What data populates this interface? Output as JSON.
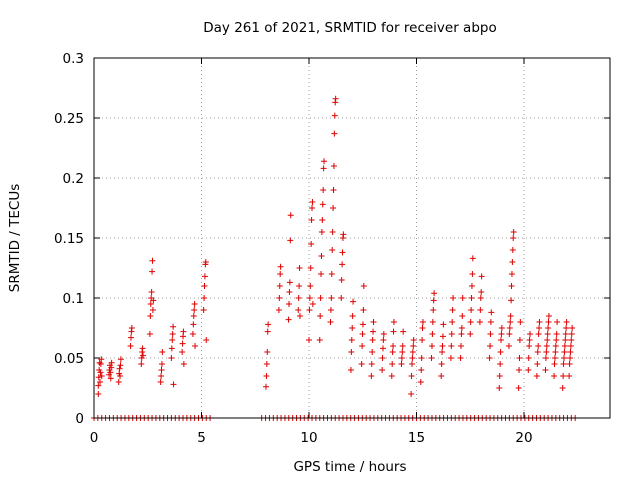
{
  "chart_data": {
    "type": "scatter",
    "title": "Day 261 of 2021, SRMTID for receiver abpo",
    "xlabel": "GPS time / hours",
    "ylabel": "SRMTID / TECUs",
    "xlim": [
      0,
      24
    ],
    "ylim": [
      0,
      0.3
    ],
    "xticks": [
      0,
      5,
      10,
      15,
      20
    ],
    "xtick_labels": [
      "0",
      "5",
      "10",
      "15",
      "20"
    ],
    "yticks": [
      0,
      0.05,
      0.1,
      0.15,
      0.2,
      0.25,
      0.3
    ],
    "ytick_labels": [
      "0",
      "0.05",
      "0.1",
      "0.15",
      "0.2",
      "0.25",
      "0.3"
    ],
    "grid": true,
    "marker": "+",
    "color": "#dd0000",
    "series": [
      {
        "name": "SRMTID",
        "points": [
          [
            0.2,
            0.02
          ],
          [
            0.2,
            0.027
          ],
          [
            0.22,
            0.034
          ],
          [
            0.24,
            0.04
          ],
          [
            0.26,
            0.046
          ],
          [
            0.28,
            0.03
          ],
          [
            0.3,
            0.038
          ],
          [
            0.32,
            0.045
          ],
          [
            0.34,
            0.049
          ],
          [
            0.36,
            0.035
          ],
          [
            0.7,
            0.036
          ],
          [
            0.72,
            0.04
          ],
          [
            0.74,
            0.044
          ],
          [
            0.76,
            0.038
          ],
          [
            0.78,
            0.033
          ],
          [
            0.8,
            0.042
          ],
          [
            0.82,
            0.046
          ],
          [
            1.15,
            0.03
          ],
          [
            1.17,
            0.037
          ],
          [
            1.19,
            0.041
          ],
          [
            1.21,
            0.035
          ],
          [
            1.23,
            0.044
          ],
          [
            1.25,
            0.049
          ],
          [
            1.7,
            0.06
          ],
          [
            1.72,
            0.067
          ],
          [
            1.74,
            0.072
          ],
          [
            1.76,
            0.075
          ],
          [
            2.2,
            0.045
          ],
          [
            2.22,
            0.05
          ],
          [
            2.24,
            0.055
          ],
          [
            2.26,
            0.058
          ],
          [
            2.28,
            0.052
          ],
          [
            2.6,
            0.07
          ],
          [
            2.62,
            0.085
          ],
          [
            2.64,
            0.095
          ],
          [
            2.66,
            0.1
          ],
          [
            2.68,
            0.105
          ],
          [
            2.7,
            0.122
          ],
          [
            2.72,
            0.131
          ],
          [
            2.74,
            0.09
          ],
          [
            2.76,
            0.098
          ],
          [
            3.1,
            0.03
          ],
          [
            3.12,
            0.035
          ],
          [
            3.14,
            0.04
          ],
          [
            3.16,
            0.045
          ],
          [
            3.18,
            0.055
          ],
          [
            3.6,
            0.05
          ],
          [
            3.62,
            0.058
          ],
          [
            3.64,
            0.065
          ],
          [
            3.66,
            0.07
          ],
          [
            3.68,
            0.076
          ],
          [
            3.7,
            0.028
          ],
          [
            4.1,
            0.055
          ],
          [
            4.12,
            0.062
          ],
          [
            4.14,
            0.068
          ],
          [
            4.16,
            0.072
          ],
          [
            4.18,
            0.045
          ],
          [
            4.6,
            0.07
          ],
          [
            4.62,
            0.078
          ],
          [
            4.64,
            0.085
          ],
          [
            4.66,
            0.09
          ],
          [
            4.68,
            0.095
          ],
          [
            4.7,
            0.06
          ],
          [
            5.1,
            0.09
          ],
          [
            5.12,
            0.1
          ],
          [
            5.14,
            0.11
          ],
          [
            5.16,
            0.118
          ],
          [
            5.18,
            0.128
          ],
          [
            5.2,
            0.13
          ],
          [
            5.22,
            0.065
          ],
          [
            8.0,
            0.026
          ],
          [
            8.02,
            0.035
          ],
          [
            8.04,
            0.045
          ],
          [
            8.06,
            0.055
          ],
          [
            8.08,
            0.072
          ],
          [
            8.1,
            0.078
          ],
          [
            8.6,
            0.09
          ],
          [
            8.62,
            0.1
          ],
          [
            8.64,
            0.11
          ],
          [
            8.66,
            0.12
          ],
          [
            8.68,
            0.126
          ],
          [
            9.05,
            0.082
          ],
          [
            9.07,
            0.095
          ],
          [
            9.09,
            0.105
          ],
          [
            9.11,
            0.113
          ],
          [
            9.13,
            0.148
          ],
          [
            9.15,
            0.169
          ],
          [
            9.5,
            0.09
          ],
          [
            9.52,
            0.1
          ],
          [
            9.54,
            0.11
          ],
          [
            9.56,
            0.125
          ],
          [
            9.58,
            0.085
          ],
          [
            10.0,
            0.065
          ],
          [
            10.02,
            0.09
          ],
          [
            10.04,
            0.1
          ],
          [
            10.06,
            0.11
          ],
          [
            10.08,
            0.125
          ],
          [
            10.1,
            0.145
          ],
          [
            10.12,
            0.165
          ],
          [
            10.14,
            0.175
          ],
          [
            10.16,
            0.18
          ],
          [
            10.18,
            0.095
          ],
          [
            10.5,
            0.065
          ],
          [
            10.52,
            0.085
          ],
          [
            10.54,
            0.1
          ],
          [
            10.56,
            0.12
          ],
          [
            10.58,
            0.135
          ],
          [
            10.6,
            0.155
          ],
          [
            10.62,
            0.165
          ],
          [
            10.64,
            0.178
          ],
          [
            10.66,
            0.19
          ],
          [
            10.68,
            0.208
          ],
          [
            10.7,
            0.214
          ],
          [
            11.0,
            0.08
          ],
          [
            11.02,
            0.09
          ],
          [
            11.04,
            0.1
          ],
          [
            11.06,
            0.12
          ],
          [
            11.08,
            0.14
          ],
          [
            11.1,
            0.155
          ],
          [
            11.12,
            0.175
          ],
          [
            11.14,
            0.19
          ],
          [
            11.16,
            0.21
          ],
          [
            11.18,
            0.237
          ],
          [
            11.2,
            0.252
          ],
          [
            11.22,
            0.263
          ],
          [
            11.24,
            0.266
          ],
          [
            11.5,
            0.1
          ],
          [
            11.52,
            0.115
          ],
          [
            11.54,
            0.128
          ],
          [
            11.56,
            0.138
          ],
          [
            11.58,
            0.15
          ],
          [
            11.6,
            0.153
          ],
          [
            11.95,
            0.04
          ],
          [
            11.97,
            0.055
          ],
          [
            11.99,
            0.065
          ],
          [
            12.01,
            0.075
          ],
          [
            12.03,
            0.085
          ],
          [
            12.05,
            0.097
          ],
          [
            12.45,
            0.045
          ],
          [
            12.47,
            0.06
          ],
          [
            12.49,
            0.07
          ],
          [
            12.51,
            0.078
          ],
          [
            12.53,
            0.09
          ],
          [
            12.55,
            0.11
          ],
          [
            12.9,
            0.035
          ],
          [
            12.92,
            0.045
          ],
          [
            12.94,
            0.055
          ],
          [
            12.96,
            0.065
          ],
          [
            12.98,
            0.072
          ],
          [
            13.0,
            0.08
          ],
          [
            13.4,
            0.04
          ],
          [
            13.42,
            0.05
          ],
          [
            13.44,
            0.058
          ],
          [
            13.46,
            0.065
          ],
          [
            13.48,
            0.07
          ],
          [
            13.85,
            0.035
          ],
          [
            13.87,
            0.045
          ],
          [
            13.89,
            0.055
          ],
          [
            13.91,
            0.06
          ],
          [
            13.93,
            0.072
          ],
          [
            13.95,
            0.08
          ],
          [
            14.3,
            0.045
          ],
          [
            14.32,
            0.05
          ],
          [
            14.34,
            0.055
          ],
          [
            14.36,
            0.06
          ],
          [
            14.38,
            0.072
          ],
          [
            14.75,
            0.02
          ],
          [
            14.77,
            0.035
          ],
          [
            14.79,
            0.045
          ],
          [
            14.81,
            0.05
          ],
          [
            14.83,
            0.055
          ],
          [
            14.85,
            0.06
          ],
          [
            14.87,
            0.065
          ],
          [
            15.2,
            0.03
          ],
          [
            15.22,
            0.04
          ],
          [
            15.24,
            0.05
          ],
          [
            15.26,
            0.065
          ],
          [
            15.28,
            0.075
          ],
          [
            15.3,
            0.08
          ],
          [
            15.7,
            0.05
          ],
          [
            15.72,
            0.06
          ],
          [
            15.74,
            0.07
          ],
          [
            15.76,
            0.08
          ],
          [
            15.78,
            0.09
          ],
          [
            15.8,
            0.098
          ],
          [
            15.82,
            0.104
          ],
          [
            16.15,
            0.035
          ],
          [
            16.17,
            0.045
          ],
          [
            16.19,
            0.055
          ],
          [
            16.21,
            0.06
          ],
          [
            16.23,
            0.068
          ],
          [
            16.25,
            0.078
          ],
          [
            16.6,
            0.05
          ],
          [
            16.62,
            0.06
          ],
          [
            16.64,
            0.07
          ],
          [
            16.66,
            0.08
          ],
          [
            16.68,
            0.09
          ],
          [
            16.7,
            0.1
          ],
          [
            17.05,
            0.05
          ],
          [
            17.07,
            0.06
          ],
          [
            17.09,
            0.07
          ],
          [
            17.11,
            0.075
          ],
          [
            17.13,
            0.085
          ],
          [
            17.15,
            0.1
          ],
          [
            17.5,
            0.07
          ],
          [
            17.52,
            0.08
          ],
          [
            17.54,
            0.09
          ],
          [
            17.56,
            0.1
          ],
          [
            17.58,
            0.11
          ],
          [
            17.6,
            0.12
          ],
          [
            17.62,
            0.133
          ],
          [
            17.95,
            0.08
          ],
          [
            17.97,
            0.09
          ],
          [
            17.99,
            0.1
          ],
          [
            18.01,
            0.105
          ],
          [
            18.03,
            0.118
          ],
          [
            18.4,
            0.05
          ],
          [
            18.42,
            0.06
          ],
          [
            18.44,
            0.07
          ],
          [
            18.46,
            0.08
          ],
          [
            18.48,
            0.088
          ],
          [
            18.85,
            0.025
          ],
          [
            18.87,
            0.035
          ],
          [
            18.89,
            0.045
          ],
          [
            18.91,
            0.055
          ],
          [
            18.93,
            0.065
          ],
          [
            18.95,
            0.07
          ],
          [
            18.97,
            0.075
          ],
          [
            19.3,
            0.06
          ],
          [
            19.32,
            0.07
          ],
          [
            19.34,
            0.075
          ],
          [
            19.36,
            0.08
          ],
          [
            19.38,
            0.085
          ],
          [
            19.4,
            0.098
          ],
          [
            19.42,
            0.11
          ],
          [
            19.44,
            0.12
          ],
          [
            19.46,
            0.13
          ],
          [
            19.48,
            0.14
          ],
          [
            19.5,
            0.15
          ],
          [
            19.52,
            0.155
          ],
          [
            19.75,
            0.025
          ],
          [
            19.77,
            0.04
          ],
          [
            19.79,
            0.05
          ],
          [
            19.81,
            0.065
          ],
          [
            19.83,
            0.08
          ],
          [
            20.2,
            0.04
          ],
          [
            20.22,
            0.05
          ],
          [
            20.24,
            0.06
          ],
          [
            20.26,
            0.065
          ],
          [
            20.28,
            0.07
          ],
          [
            20.6,
            0.035
          ],
          [
            20.62,
            0.045
          ],
          [
            20.64,
            0.055
          ],
          [
            20.66,
            0.06
          ],
          [
            20.68,
            0.07
          ],
          [
            20.7,
            0.075
          ],
          [
            20.72,
            0.08
          ],
          [
            21.0,
            0.04
          ],
          [
            21.02,
            0.05
          ],
          [
            21.04,
            0.055
          ],
          [
            21.06,
            0.06
          ],
          [
            21.08,
            0.065
          ],
          [
            21.1,
            0.07
          ],
          [
            21.12,
            0.075
          ],
          [
            21.14,
            0.08
          ],
          [
            21.16,
            0.085
          ],
          [
            21.4,
            0.035
          ],
          [
            21.42,
            0.045
          ],
          [
            21.44,
            0.05
          ],
          [
            21.46,
            0.055
          ],
          [
            21.48,
            0.06
          ],
          [
            21.5,
            0.065
          ],
          [
            21.52,
            0.07
          ],
          [
            21.54,
            0.08
          ],
          [
            21.8,
            0.025
          ],
          [
            21.82,
            0.035
          ],
          [
            21.84,
            0.045
          ],
          [
            21.86,
            0.05
          ],
          [
            21.88,
            0.055
          ],
          [
            21.9,
            0.06
          ],
          [
            21.92,
            0.065
          ],
          [
            21.94,
            0.07
          ],
          [
            21.96,
            0.075
          ],
          [
            21.98,
            0.08
          ],
          [
            22.1,
            0.035
          ],
          [
            22.12,
            0.045
          ],
          [
            22.14,
            0.05
          ],
          [
            22.16,
            0.055
          ],
          [
            22.18,
            0.06
          ],
          [
            22.2,
            0.065
          ],
          [
            22.22,
            0.07
          ],
          [
            22.24,
            0.075
          ]
        ]
      }
    ],
    "zero_ranges": [
      [
        0.0,
        5.5
      ],
      [
        7.8,
        22.4
      ]
    ],
    "zero_step": 0.18
  }
}
